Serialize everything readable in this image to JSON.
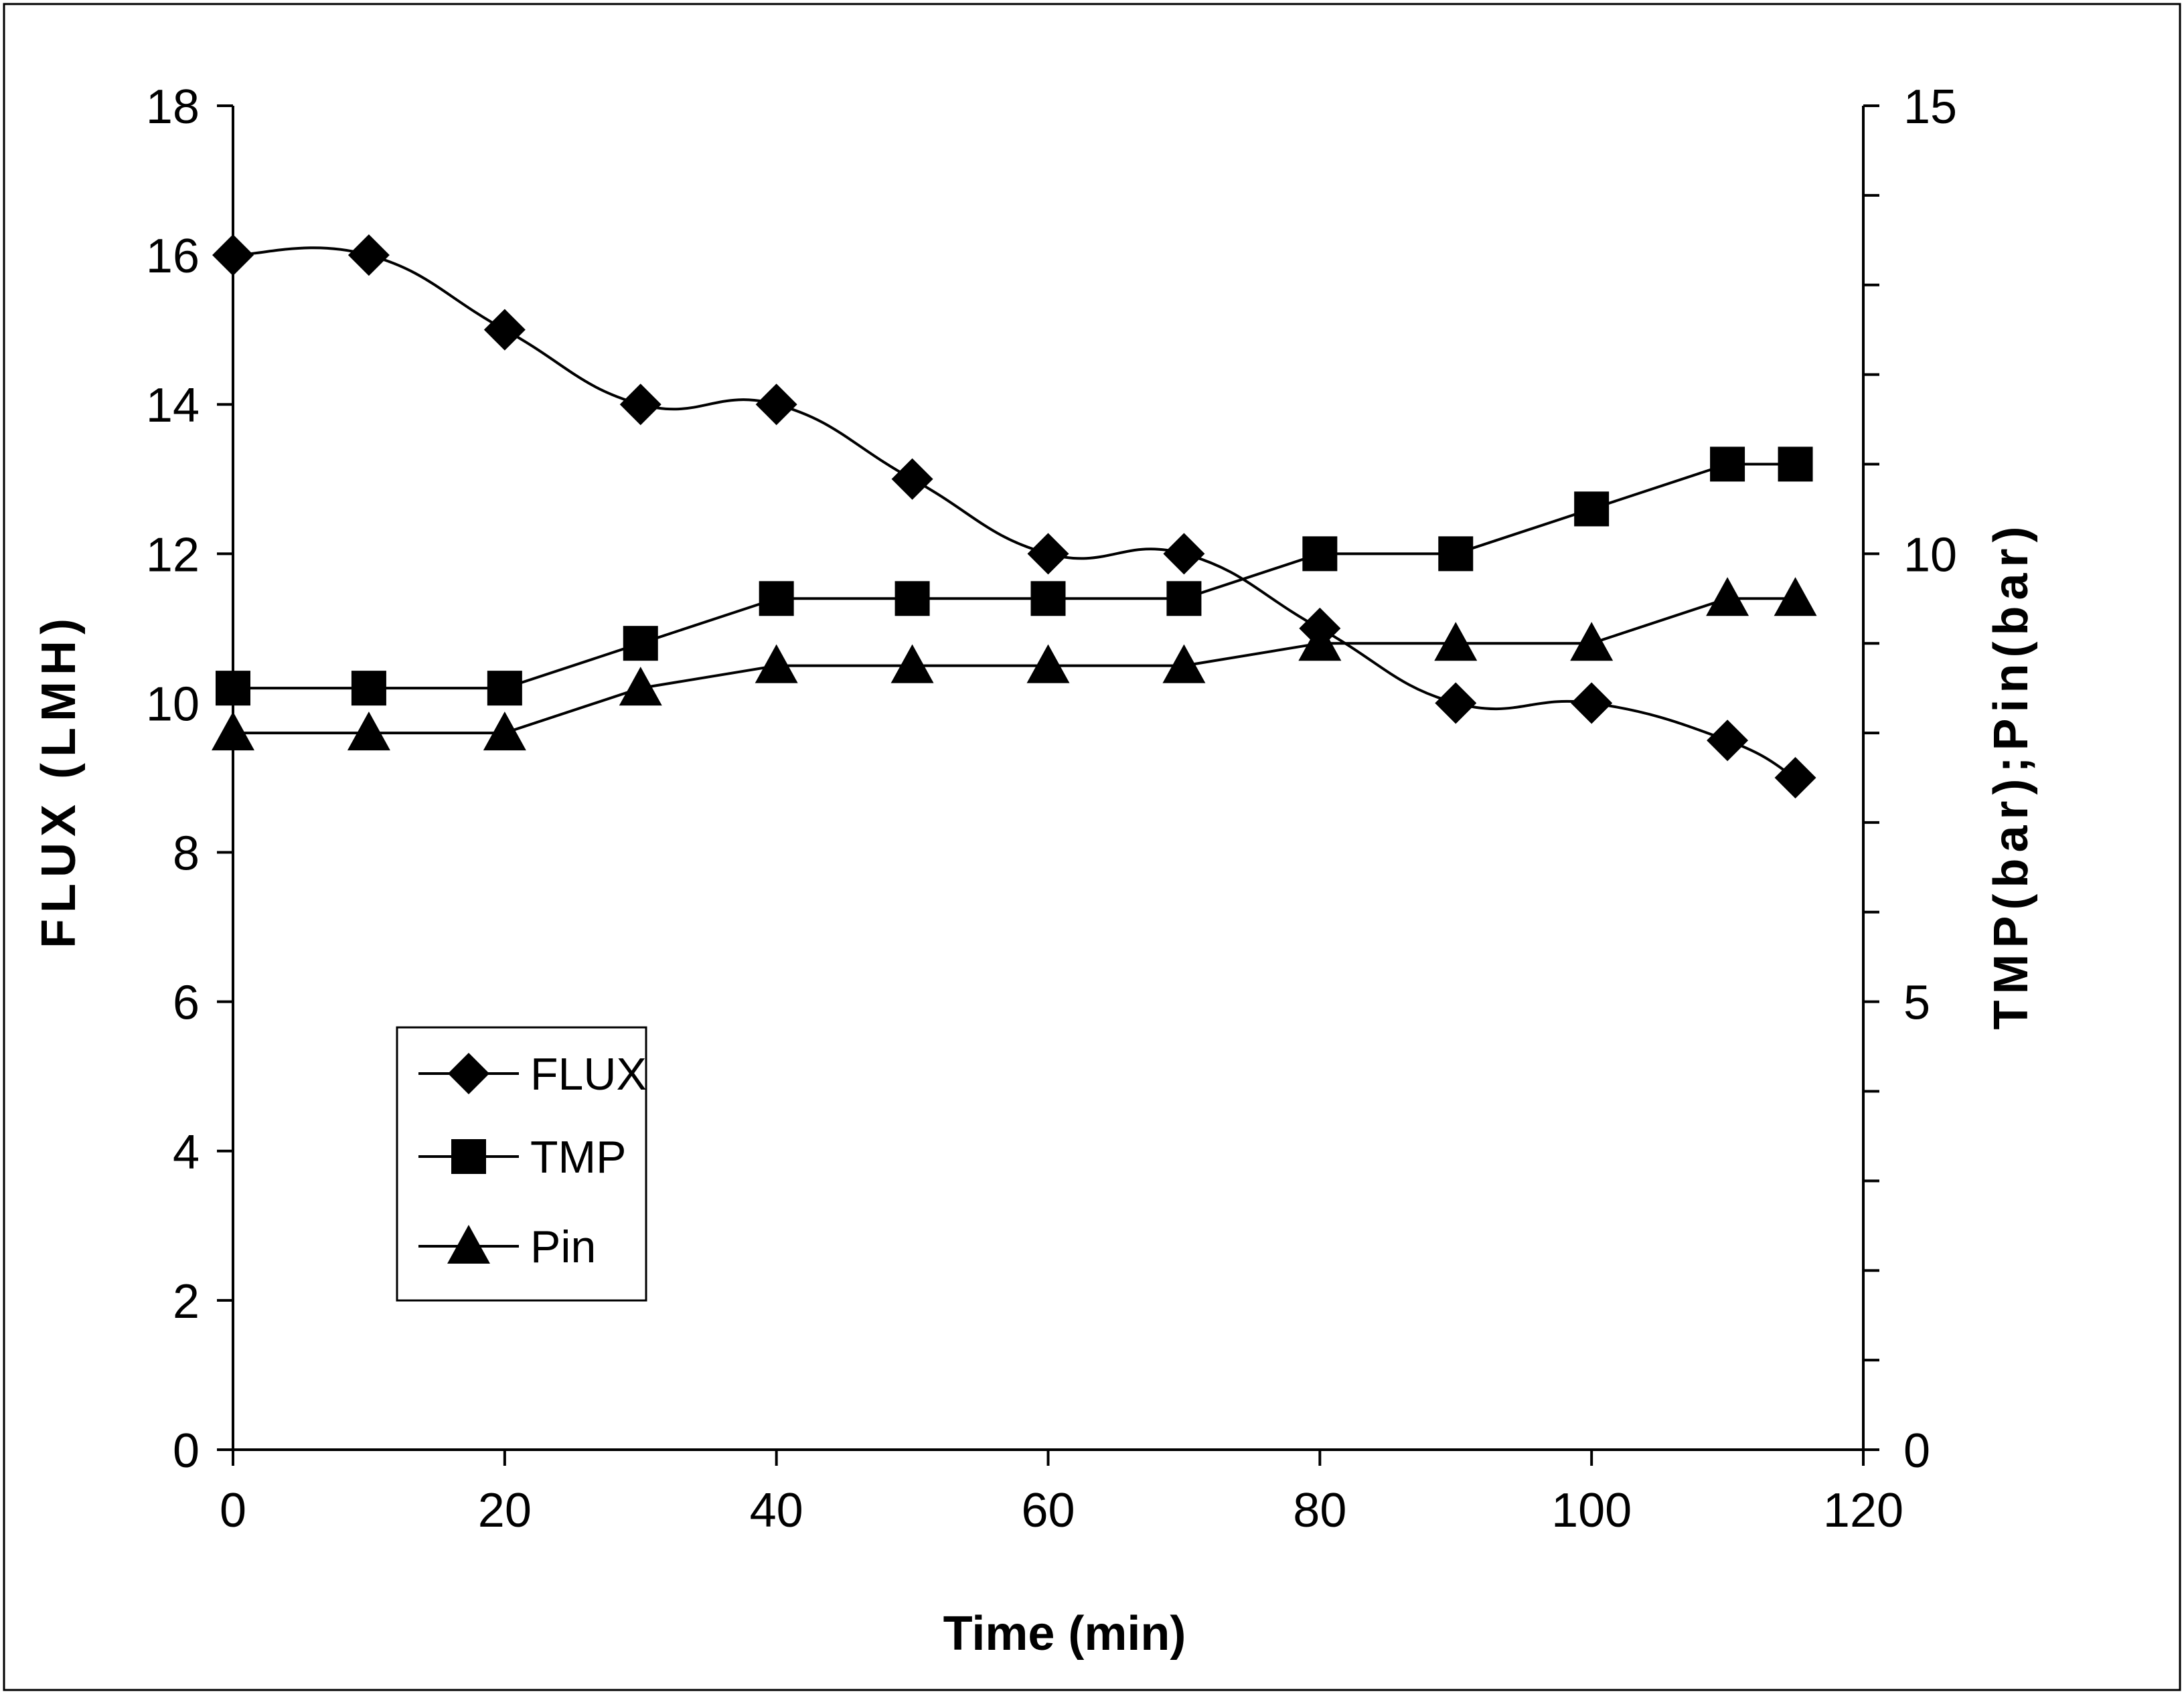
{
  "chart_data": {
    "type": "line",
    "title": "",
    "xlabel": "Time (min)",
    "ylabel": "FLUX (LMH)",
    "y2label": "TMP(bar);Pin(bar)",
    "xlim": [
      0,
      120
    ],
    "ylim": [
      0,
      18
    ],
    "y2lim": [
      0,
      15
    ],
    "xticks": [
      0,
      20,
      40,
      60,
      80,
      100,
      120
    ],
    "yticks": [
      0,
      2,
      4,
      6,
      8,
      10,
      12,
      14,
      16,
      18
    ],
    "y2ticks_labeled": [
      0,
      5,
      10,
      15
    ],
    "y2ticks_minor_step": 1,
    "grid": false,
    "legend_position": "lower-left",
    "x": [
      0,
      10,
      20,
      30,
      40,
      50,
      60,
      70,
      80,
      90,
      100,
      110,
      115
    ],
    "series": [
      {
        "name": "FLUX",
        "axis": "left",
        "marker": "diamond",
        "smooth": true,
        "values": [
          16,
          16,
          15,
          14,
          14,
          13,
          12,
          12,
          11,
          10,
          10,
          9.5,
          9
        ]
      },
      {
        "name": "TMP",
        "axis": "right",
        "marker": "square",
        "smooth": false,
        "values": [
          8.5,
          8.5,
          8.5,
          9,
          9.5,
          9.5,
          9.5,
          9.5,
          10,
          10,
          10.5,
          11,
          11
        ]
      },
      {
        "name": "Pin",
        "axis": "right",
        "marker": "triangle",
        "smooth": false,
        "values": [
          8,
          8,
          8,
          8.5,
          8.75,
          8.75,
          8.75,
          8.75,
          9,
          9,
          9,
          9.5,
          9.5
        ]
      }
    ]
  }
}
